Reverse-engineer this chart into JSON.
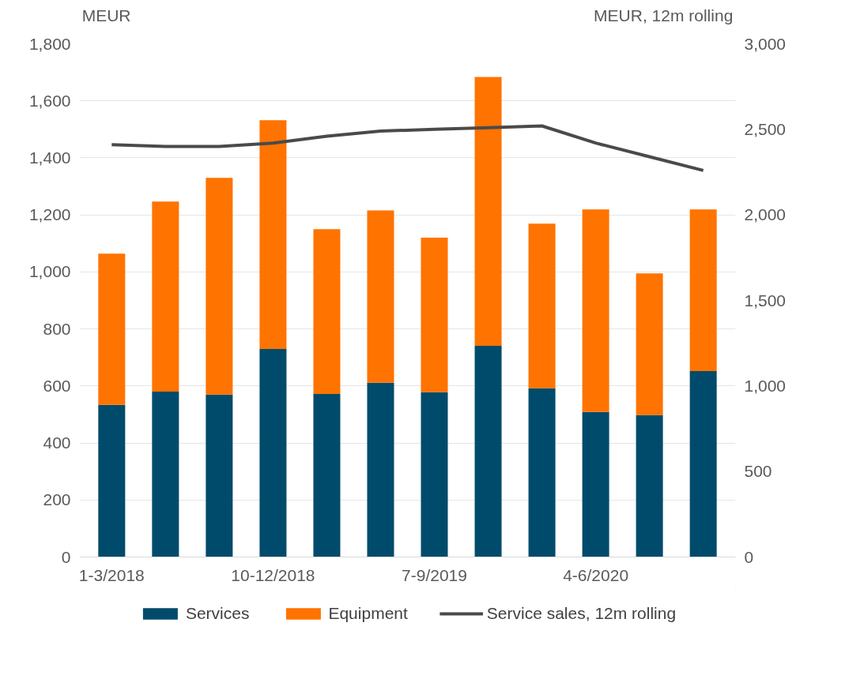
{
  "chart_data": {
    "type": "bar",
    "stacked": true,
    "ylabel": "MEUR",
    "y2label": "MEUR, 12m rolling",
    "categories": [
      "1-3/2018",
      null,
      null,
      "10-12/2018",
      null,
      null,
      "7-9/2019",
      null,
      null,
      "4-6/2020",
      null,
      null
    ],
    "series": [
      {
        "name": "Services",
        "color": "#004b6b",
        "values": [
          534,
          580,
          570,
          730,
          572,
          611,
          578,
          741,
          592,
          509,
          498,
          652
        ]
      },
      {
        "name": "Equipment",
        "color": "#ff7300",
        "values": [
          530,
          667,
          760,
          802,
          578,
          605,
          542,
          943,
          577,
          710,
          497,
          567
        ]
      },
      {
        "name": "Service sales, 12m rolling",
        "type": "line",
        "axis": "y2",
        "color": "#4a4a4a",
        "values": [
          2410,
          2400,
          2400,
          2420,
          2460,
          2490,
          2500,
          2510,
          2520,
          2420,
          2340,
          2260
        ]
      }
    ],
    "ylim": [
      0,
      1800
    ],
    "yticks": [
      0,
      {
        "value": 200,
        "label": "200"
      },
      {
        "value": 400,
        "label": "400"
      },
      {
        "value": 600,
        "label": "600"
      },
      {
        "value": 800,
        "label": "800"
      },
      {
        "value": 1000,
        "label": "1,000"
      },
      {
        "value": 1200,
        "label": "1,200"
      },
      {
        "value": 1400,
        "label": "1,400"
      },
      {
        "value": 1600,
        "label": "1,600"
      },
      {
        "value": 1800,
        "label": "1,800"
      }
    ],
    "y2lim": [
      0,
      3000
    ],
    "y2ticks": [
      0,
      500,
      {
        "value": 1000,
        "label": "1,000"
      },
      {
        "value": 1500,
        "label": "1,500"
      },
      {
        "value": 2000,
        "label": "2,000"
      },
      {
        "value": 2500,
        "label": "2,500"
      },
      {
        "value": 3000,
        "label": "3,000"
      }
    ],
    "grid": "y",
    "legend": "bottom"
  }
}
